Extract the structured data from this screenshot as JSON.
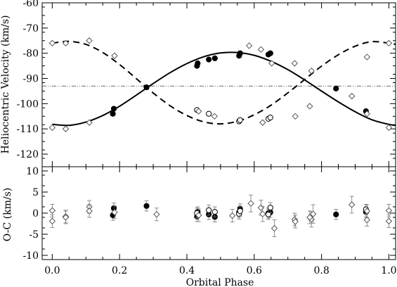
{
  "chart_data": [
    {
      "type": "line",
      "panel": "top",
      "xlabel": "",
      "ylabel": "Heliocentric Velocity (km/s)",
      "xlim": [
        -0.03,
        1.02
      ],
      "ylim": [
        -125,
        -60
      ],
      "xticks": [
        0.0,
        0.2,
        0.4,
        0.6,
        0.8,
        1.0
      ],
      "yticks": [
        -120,
        -110,
        -100,
        -90,
        -80,
        -70,
        -60
      ],
      "grid": false,
      "legend": "none",
      "gamma_velocity": -93,
      "curves": [
        {
          "style": "solid",
          "phase": [
            0.0,
            0.05,
            0.1,
            0.15,
            0.2,
            0.25,
            0.3,
            0.35,
            0.4,
            0.45,
            0.5,
            0.55,
            0.6,
            0.65,
            0.7,
            0.75,
            0.8,
            0.85,
            0.9,
            0.95,
            1.0,
            1.02
          ],
          "values": [
            -108.2,
            -108.6,
            -107.3,
            -104.7,
            -101.0,
            -96.6,
            -92.0,
            -87.7,
            -84.1,
            -81.4,
            -79.9,
            -79.7,
            -80.8,
            -83.2,
            -86.5,
            -90.6,
            -95.0,
            -99.3,
            -103.2,
            -106.4,
            -108.2,
            -108.6
          ]
        },
        {
          "style": "dashed",
          "phase": [
            0.0,
            0.05,
            0.1,
            0.15,
            0.2,
            0.25,
            0.3,
            0.35,
            0.4,
            0.45,
            0.5,
            0.55,
            0.6,
            0.65,
            0.7,
            0.75,
            0.8,
            0.85,
            0.9,
            0.95,
            1.0,
            1.02
          ],
          "values": [
            -76.0,
            -75.3,
            -76.5,
            -79.7,
            -84.5,
            -90.1,
            -95.8,
            -100.8,
            -104.7,
            -107.2,
            -108.0,
            -107.0,
            -104.4,
            -100.6,
            -95.7,
            -90.4,
            -85.1,
            -80.6,
            -77.2,
            -75.4,
            -76.0,
            -76.5
          ]
        }
      ],
      "series": [
        {
          "name": "",
          "marker": "filled-circle",
          "points": [
            [
              0.18,
              -104
            ],
            [
              0.183,
              -102
            ],
            [
              0.28,
              -93.5
            ],
            [
              0.43,
              -85
            ],
            [
              0.432,
              -84
            ],
            [
              0.465,
              -82.5
            ],
            [
              0.483,
              -82
            ],
            [
              0.555,
              -81
            ],
            [
              0.558,
              -80
            ],
            [
              0.642,
              -80.5
            ],
            [
              0.648,
              -80
            ],
            [
              0.843,
              -94
            ],
            [
              0.932,
              -103
            ]
          ]
        },
        {
          "name": "",
          "marker": "open-circle",
          "points": [
            [
              0.43,
              -102.5
            ],
            [
              0.465,
              -104
            ],
            [
              0.555,
              -107
            ],
            [
              0.558,
              -106.5
            ],
            [
              0.642,
              -106
            ],
            [
              0.648,
              -105.5
            ]
          ]
        },
        {
          "name": "",
          "marker": "open-diamond",
          "points": [
            [
              0.0,
              -76
            ],
            [
              0.0,
              -109.5
            ],
            [
              0.04,
              -76
            ],
            [
              0.04,
              -110
            ],
            [
              0.11,
              -75
            ],
            [
              0.11,
              -107.5
            ],
            [
              0.185,
              -81
            ],
            [
              0.435,
              -103
            ],
            [
              0.482,
              -105
            ],
            [
              0.585,
              -77
            ],
            [
              0.62,
              -78.5
            ],
            [
              0.625,
              -107.5
            ],
            [
              0.652,
              -84
            ],
            [
              0.72,
              -84
            ],
            [
              0.722,
              -105
            ],
            [
              0.77,
              -87
            ],
            [
              0.765,
              -101
            ],
            [
              0.89,
              -97
            ],
            [
              0.935,
              -81.5
            ],
            [
              0.935,
              -104
            ],
            [
              1.0,
              -76
            ],
            [
              1.0,
              -109.5
            ]
          ]
        }
      ]
    },
    {
      "type": "scatter",
      "panel": "bottom",
      "xlabel": "Orbital Phase",
      "ylabel": "O-C (km/s)",
      "xlim": [
        -0.03,
        1.02
      ],
      "ylim": [
        -11,
        11
      ],
      "xticks": [
        0.0,
        0.2,
        0.4,
        0.6,
        0.8,
        1.0
      ],
      "xtick_labels": [
        "0.0",
        "0.2",
        "0.4",
        "0.6",
        "0.8",
        "1.0"
      ],
      "yticks": [
        -10,
        -5,
        0,
        5,
        10
      ],
      "grid": false,
      "legend": "none",
      "series": [
        {
          "name": "",
          "marker": "filled-circle",
          "points": [
            [
              0.18,
              -0.5,
              1.2
            ],
            [
              0.183,
              1.2,
              1.2
            ],
            [
              0.28,
              1.7,
              1.2
            ],
            [
              0.43,
              -0.8,
              1.2
            ],
            [
              0.432,
              0.3,
              1.2
            ],
            [
              0.465,
              -0.3,
              1.2
            ],
            [
              0.483,
              -0.9,
              1.2
            ],
            [
              0.555,
              0.2,
              1.2
            ],
            [
              0.558,
              1.0,
              1.2
            ],
            [
              0.642,
              0.0,
              1.2
            ],
            [
              0.648,
              0.2,
              1.2
            ],
            [
              0.843,
              -0.3,
              1.2
            ],
            [
              0.932,
              0.3,
              1.2
            ]
          ]
        },
        {
          "name": "",
          "marker": "open-circle",
          "points": [
            [
              0.43,
              0.0,
              1.2
            ],
            [
              0.465,
              0.7,
              1.2
            ],
            [
              0.483,
              0.3,
              1.2
            ],
            [
              0.555,
              -0.2,
              1.2
            ],
            [
              0.558,
              0.5,
              1.2
            ],
            [
              0.642,
              -0.3,
              1.2
            ],
            [
              0.648,
              1.3,
              1.2
            ],
            [
              0.932,
              0.9,
              1.2
            ]
          ]
        },
        {
          "name": "",
          "marker": "open-diamond",
          "points": [
            [
              0.0,
              0.6,
              1.5
            ],
            [
              0.0,
              -1.9,
              1.5
            ],
            [
              0.04,
              -0.8,
              1.5
            ],
            [
              0.04,
              -1.0,
              1.5
            ],
            [
              0.11,
              1.5,
              1.5
            ],
            [
              0.11,
              0.5,
              1.5
            ],
            [
              0.185,
              0.2,
              1.5
            ],
            [
              0.31,
              -0.3,
              1.5
            ],
            [
              0.435,
              -0.5,
              1.5
            ],
            [
              0.535,
              -0.6,
              1.5
            ],
            [
              0.59,
              2.3,
              2.0
            ],
            [
              0.62,
              1.3,
              1.8
            ],
            [
              0.625,
              -0.2,
              1.8
            ],
            [
              0.66,
              -3.6,
              2.0
            ],
            [
              0.72,
              -1.5,
              1.5
            ],
            [
              0.722,
              -2.0,
              1.5
            ],
            [
              0.77,
              -1.5,
              1.8
            ],
            [
              0.775,
              -0.2,
              2.2
            ],
            [
              0.765,
              -1.0,
              1.5
            ],
            [
              0.89,
              2.0,
              2.0
            ],
            [
              0.935,
              -1.6,
              1.5
            ],
            [
              0.935,
              0.5,
              1.5
            ],
            [
              1.0,
              0.6,
              1.5
            ],
            [
              1.0,
              -1.9,
              1.5
            ]
          ]
        }
      ]
    }
  ]
}
